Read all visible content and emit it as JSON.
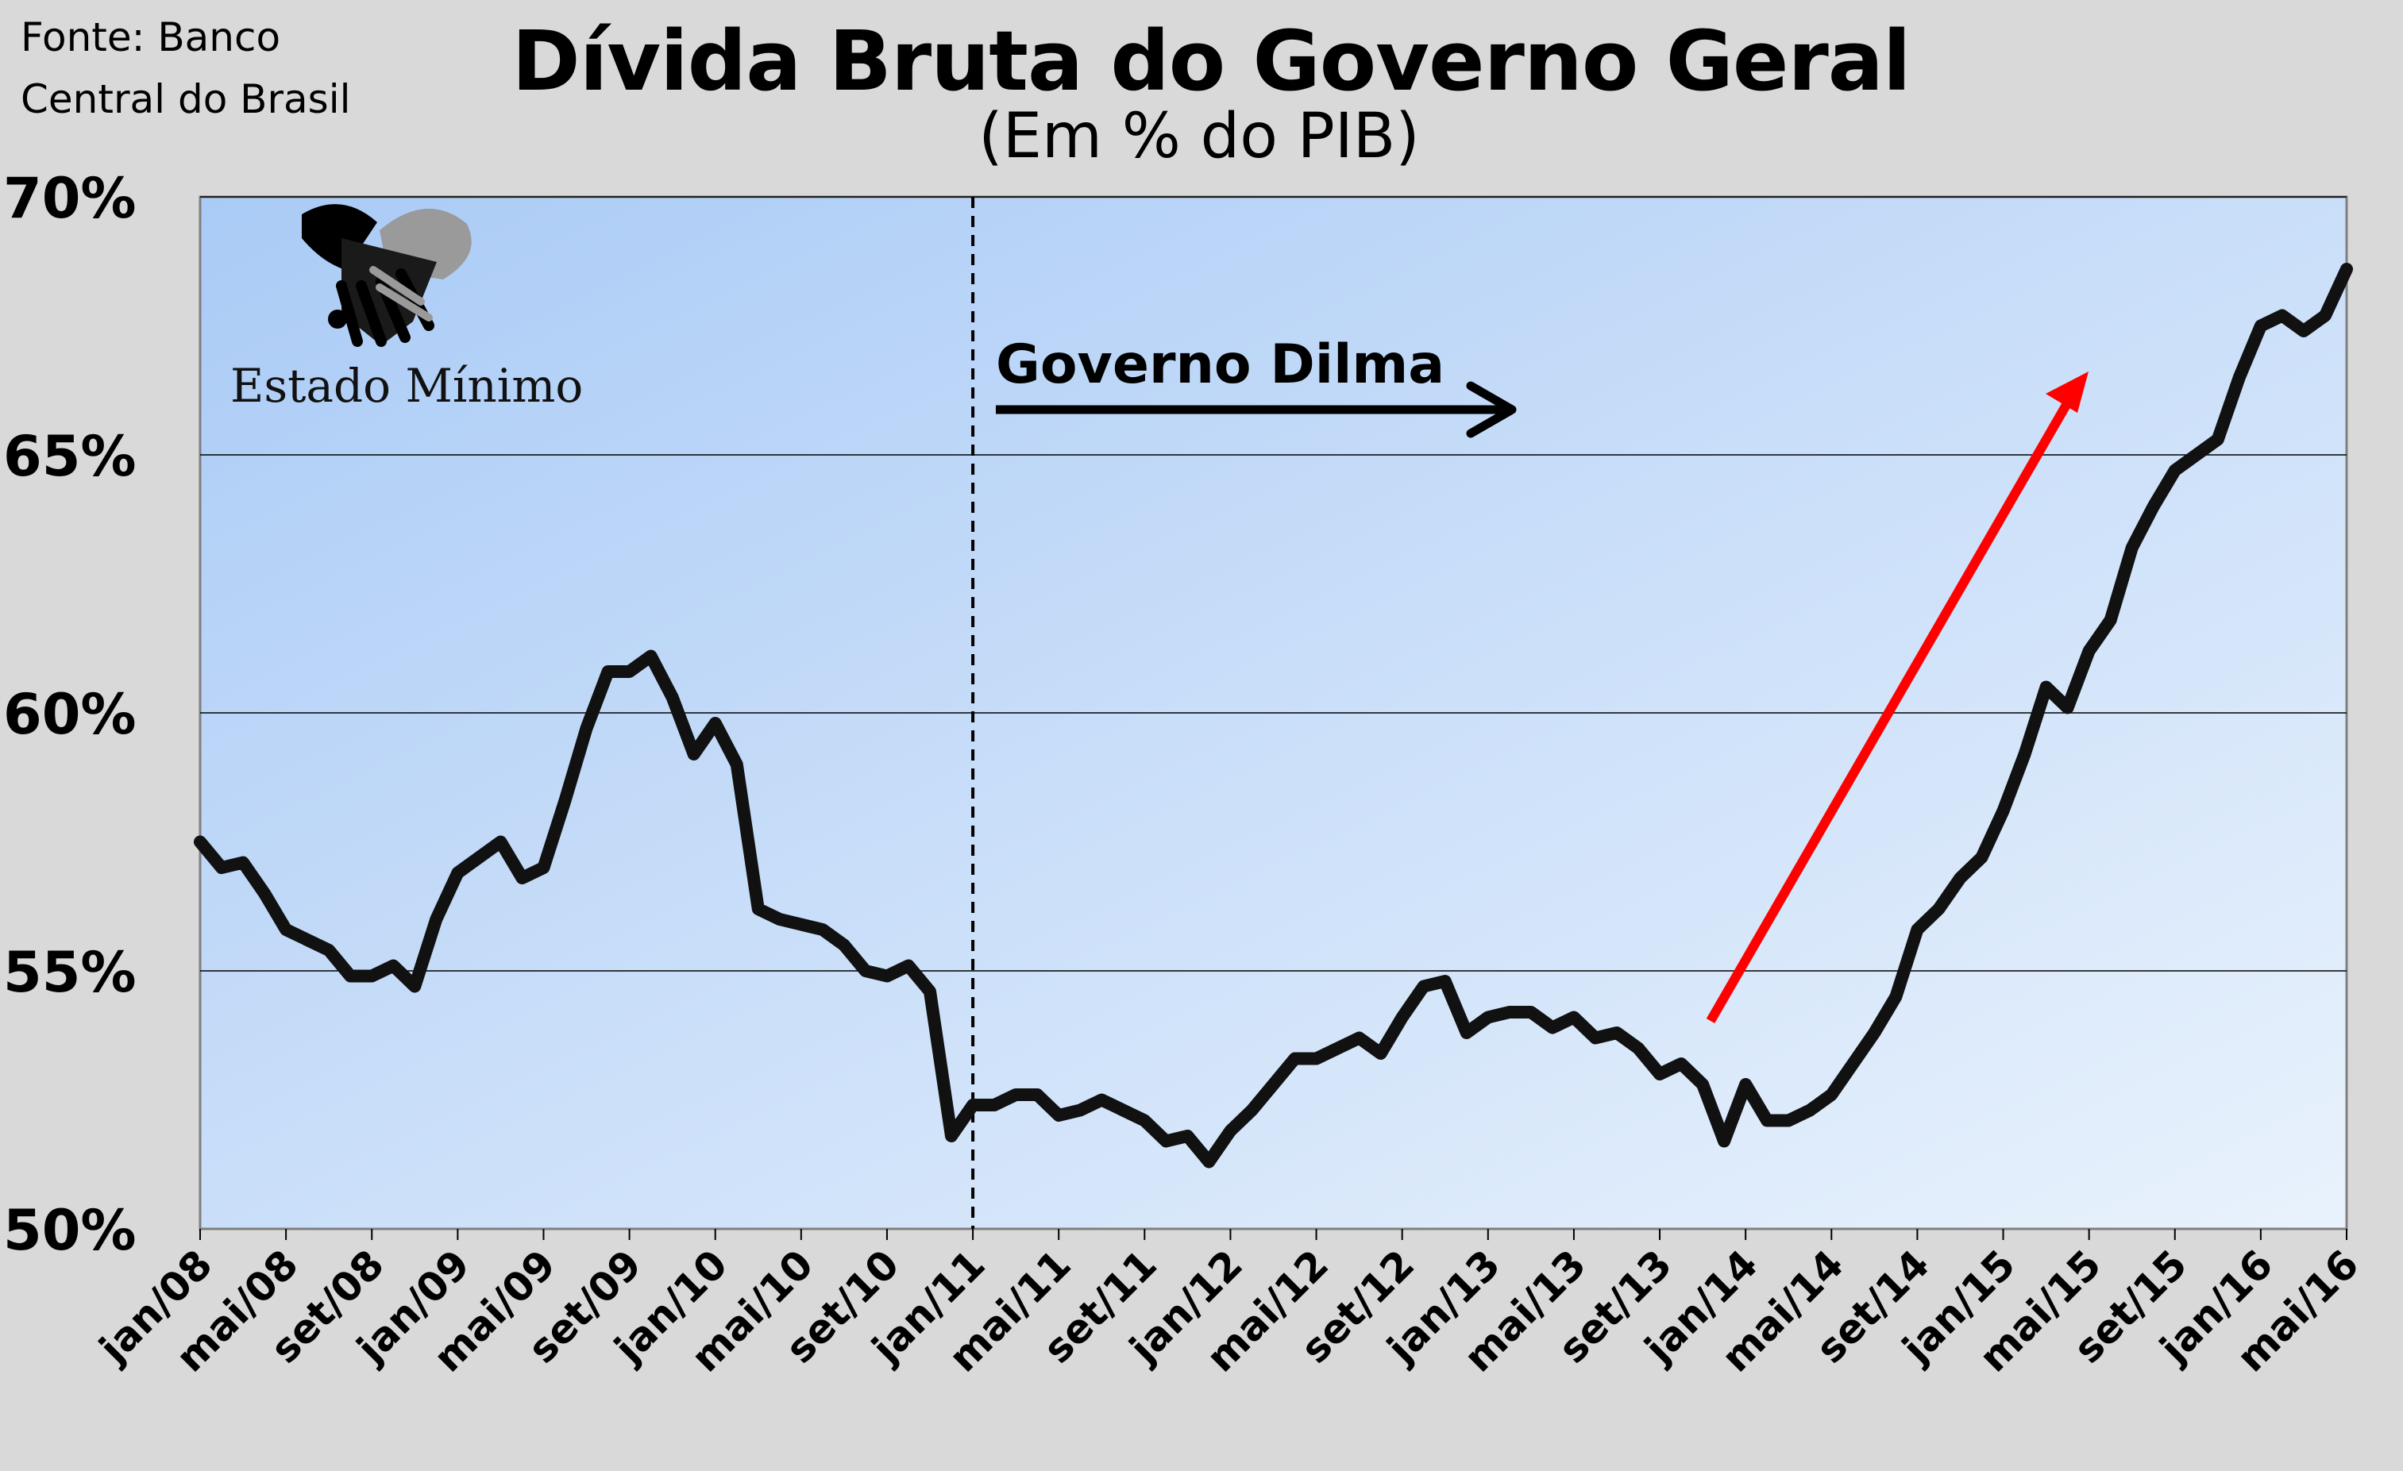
{
  "source_line1": "Fonte: Banco",
  "source_line2": "Central do Brasil",
  "logo_text": "Estado Mínimo",
  "annotation_text": "Governo Dilma",
  "colors": {
    "background": "#d9d9d9",
    "plot_top": "#aacbf6",
    "plot_bottom": "#e9f2fc",
    "line": "#111111",
    "trend_arrow": "#ff0000",
    "grid": "#000000"
  },
  "chart_data": {
    "type": "line",
    "title": "Dívida Bruta do Governo Geral",
    "subtitle": "(Em % do PIB)",
    "ylim": [
      50,
      70
    ],
    "y_ticks": [
      "50%",
      "55%",
      "60%",
      "65%",
      "70%"
    ],
    "x_tick_labels": [
      "jan/08",
      "mai/08",
      "set/08",
      "jan/09",
      "mai/09",
      "set/09",
      "jan/10",
      "mai/10",
      "set/10",
      "jan/11",
      "mai/11",
      "set/11",
      "jan/12",
      "mai/12",
      "set/12",
      "jan/13",
      "mai/13",
      "set/13",
      "jan/14",
      "mai/14",
      "set/14",
      "jan/15",
      "mai/15",
      "set/15",
      "jan/16",
      "mai/16"
    ],
    "grid": true,
    "marker": "jan/11",
    "series": [
      {
        "values": [
          57.5,
          57.0,
          57.1,
          56.5,
          55.8,
          55.6,
          55.4,
          54.9,
          54.9,
          55.1,
          54.7,
          56.0,
          56.9,
          57.2,
          57.5,
          56.8,
          57.0,
          58.3,
          59.7,
          60.8,
          60.8,
          61.1,
          60.3,
          59.2,
          59.8,
          59.0,
          56.2,
          56.0,
          55.9,
          55.8,
          55.5,
          55.0,
          54.9,
          55.1,
          54.6,
          51.8,
          52.4,
          52.4,
          52.6,
          52.6,
          52.2,
          52.3,
          52.5,
          52.3,
          52.1,
          51.7,
          51.8,
          51.3,
          51.9,
          52.3,
          52.8,
          53.3,
          53.3,
          53.5,
          53.7,
          53.4,
          54.1,
          54.7,
          54.8,
          53.8,
          54.1,
          54.2,
          54.2,
          53.9,
          54.1,
          53.7,
          53.8,
          53.5,
          53.0,
          53.2,
          52.8,
          51.7,
          52.8,
          52.1,
          52.1,
          52.3,
          52.6,
          53.2,
          53.8,
          54.5,
          55.8,
          56.2,
          56.8,
          57.2,
          58.1,
          59.2,
          60.5,
          60.1,
          61.2,
          61.8,
          63.2,
          64.0,
          64.7,
          65.0,
          65.3,
          66.5,
          67.5,
          67.7,
          67.4,
          67.7,
          68.6
        ]
      }
    ]
  }
}
